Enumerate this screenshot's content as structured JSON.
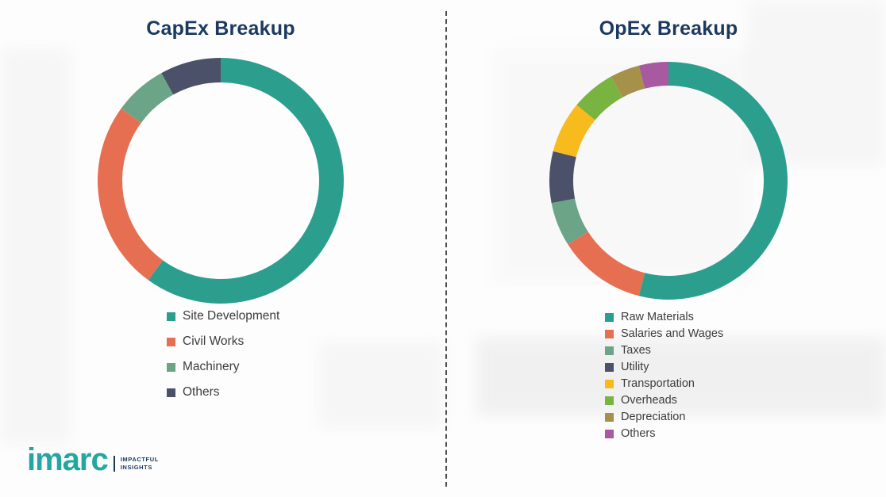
{
  "theme": {
    "title_color": "#1B3A60",
    "legend_text_color": "#3C3C3C",
    "divider_color": "#4D4D4D",
    "background_color": "#FDFDFD"
  },
  "chart_data": [
    {
      "type": "pie",
      "variant": "donut",
      "title": "CapEx Breakup",
      "labels": [
        "Site Development",
        "Civil Works",
        "Machinery",
        "Others"
      ],
      "values": [
        60,
        25,
        7,
        8
      ],
      "colors": [
        "#2B9E8E",
        "#E76F51",
        "#6CA488",
        "#4A5168"
      ],
      "unit": "percent_estimated_from_arc",
      "legend_position": "below-chart",
      "start_angle_deg": 0,
      "direction": "clockwise"
    },
    {
      "type": "pie",
      "variant": "donut",
      "title": "OpEx Breakup",
      "labels": [
        "Raw Materials",
        "Salaries and Wages",
        "Taxes",
        "Utility",
        "Transportation",
        "Overheads",
        "Depreciation",
        "Others"
      ],
      "values": [
        54,
        12,
        6,
        7,
        7,
        6,
        4,
        4
      ],
      "colors": [
        "#2B9E8E",
        "#E76F51",
        "#6CA488",
        "#4A5168",
        "#F7BB1E",
        "#78B43F",
        "#A6914B",
        "#A85AA0"
      ],
      "unit": "percent_estimated_from_arc",
      "legend_position": "below-chart",
      "start_angle_deg": 0,
      "direction": "clockwise"
    }
  ],
  "logo": {
    "word": "imarc",
    "tagline_line1": "IMPACTFUL",
    "tagline_line2": "INSIGHTS",
    "word_color": "#23A7A0",
    "tagline_color": "#17375E"
  }
}
